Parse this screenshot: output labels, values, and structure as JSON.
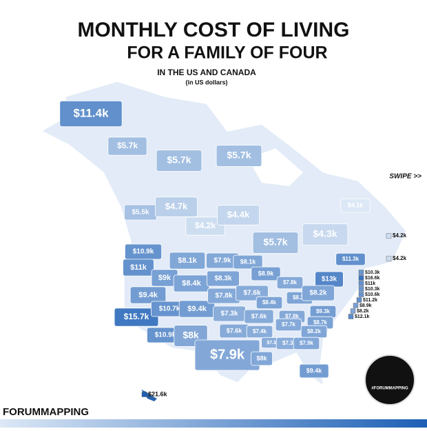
{
  "title_line1": "MONTHLY COST OF LIVING",
  "title_line2": "FOR A FAMILY OF FOUR",
  "subtitle": "IN THE US AND CANADA",
  "subtitle_note": "(in US dollars)",
  "swipe": "SWIPE >>",
  "brand": "FORUMMAPPING",
  "logo_text": "#FORUMMAPPING",
  "chart_data": {
    "type": "choropleth",
    "color_low": "#dce8f6",
    "color_high": "#1d5fb5",
    "values": [
      11400,
      5700,
      5700,
      5700,
      5500,
      4700,
      4200,
      4400,
      5700,
      4300,
      4100,
      4200,
      4200,
      10900,
      11000,
      15700,
      9400,
      9000,
      8100,
      8400,
      10700,
      9400,
      10900,
      8000,
      7900,
      8300,
      7800,
      7300,
      7600,
      7900,
      8100,
      8900,
      7600,
      8400,
      7600,
      7400,
      8000,
      7800,
      8300,
      7800,
      13000,
      11300,
      8200,
      9300,
      8700,
      7700,
      8200,
      7300,
      7300,
      7900,
      9400,
      21600,
      10300,
      16600,
      11000,
      10300,
      10600,
      11200,
      8900,
      8200,
      12100
    ],
    "value_labels": [
      "$11.4k",
      "$5.7k",
      "$5.7k",
      "$5.7k",
      "$5.5k",
      "$4.7k",
      "$4.2k",
      "$4.4k",
      "$5.7k",
      "$4.3k",
      "$4.1k",
      "$4.2k",
      "$4.2k",
      "$10.9k",
      "$11k",
      "$15.7k",
      "$9.4k",
      "$9k",
      "$8.1k",
      "$8.4k",
      "$10.7k",
      "$9.4k",
      "$10.9k",
      "$8k",
      "$7.9k",
      "$8.3k",
      "$7.8k",
      "$7.3k",
      "$7.6k",
      "$7.9k",
      "$8.1k",
      "$8.9k",
      "$7.6k",
      "$8.4k",
      "$7.6k",
      "$7.4k",
      "$8k",
      "$7.8k",
      "$8.3k",
      "$7.8k",
      "$13k",
      "$11.3k",
      "$8.2k",
      "$9.3k",
      "$8.7k",
      "$7.7k",
      "$8.2k",
      "$7.3k",
      "$7.3k",
      "$7.9k",
      "$9.4k",
      "$21.6k",
      "$10.3k",
      "$16.6k",
      "$11k",
      "$10.3k",
      "$10.6k",
      "$11.2k",
      "$8.9k",
      "$8.2k",
      "$12.1k"
    ]
  }
}
